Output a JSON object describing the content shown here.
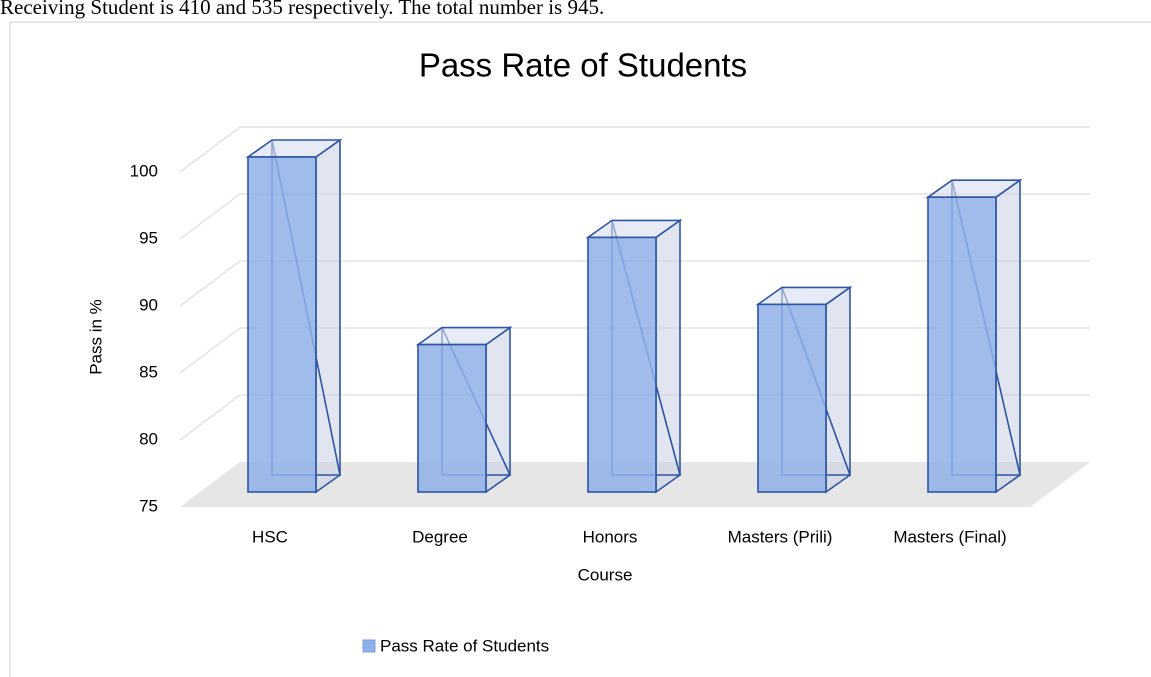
{
  "text": "Receiving Student is 410 and 535 respectively. The total number is 945.",
  "chart_data": {
    "type": "bar3d",
    "title": "Pass Rate of Students",
    "categories": [
      "HSC",
      "Degree",
      "Honors",
      "Masters (Prili)",
      "Masters (Final)"
    ],
    "series": [
      {
        "name": "Pass Rate of Students",
        "color": "#8eb0e8",
        "values": [
          100,
          86,
          94,
          89,
          97
        ]
      }
    ],
    "x_label": "Course",
    "y_label": "Pass in %",
    "ylim": [
      75,
      100
    ],
    "yticks": [
      75,
      80,
      85,
      90,
      95,
      100
    ],
    "grid": true,
    "legend": "bottom"
  }
}
